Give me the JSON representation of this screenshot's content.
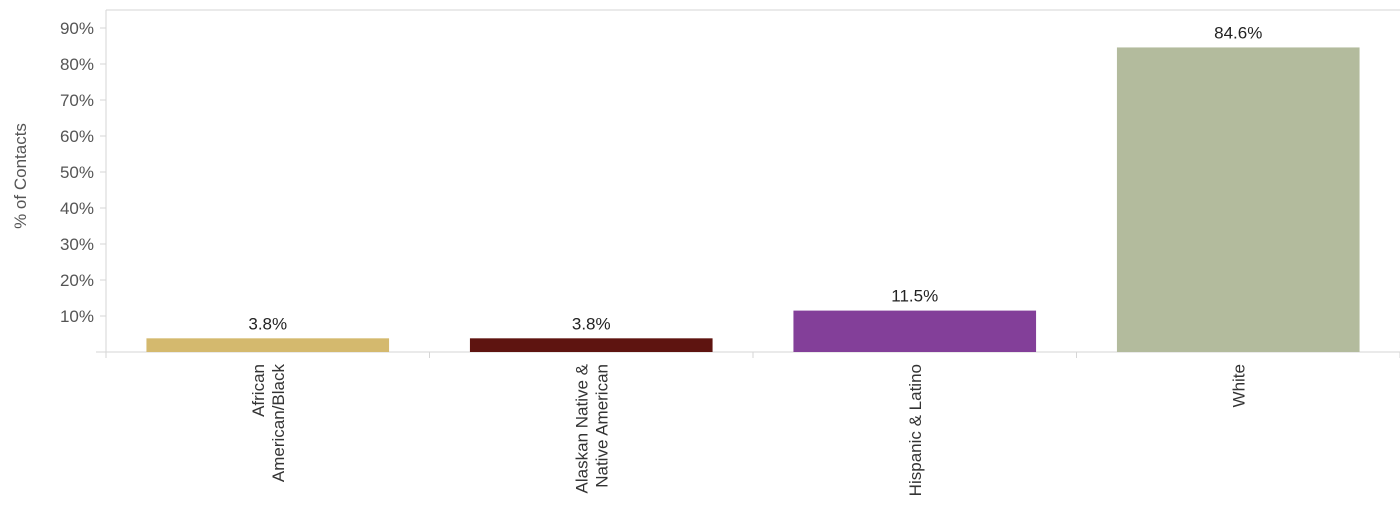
{
  "chart_data": {
    "type": "bar",
    "title": "",
    "xlabel": "",
    "ylabel": "% of Contacts",
    "ylim": [
      0,
      95
    ],
    "yticks": [
      10,
      20,
      30,
      40,
      50,
      60,
      70,
      80,
      90
    ],
    "ytick_labels": [
      "10%",
      "20%",
      "30%",
      "40%",
      "50%",
      "60%",
      "70%",
      "80%",
      "90%"
    ],
    "grid": false,
    "legend": "none",
    "categories": [
      {
        "lines": [
          "African",
          "American/Black"
        ]
      },
      {
        "lines": [
          "Alaskan Native &",
          "Native American"
        ]
      },
      {
        "lines": [
          "Hispanic & Latino"
        ]
      },
      {
        "lines": [
          "White"
        ]
      }
    ],
    "values": [
      3.8,
      3.8,
      11.5,
      84.6
    ],
    "value_labels": [
      "3.8%",
      "3.8%",
      "11.5%",
      "84.6%"
    ],
    "colors": [
      "#d4b96e",
      "#5e1410",
      "#833f99",
      "#b3bb9d"
    ]
  }
}
